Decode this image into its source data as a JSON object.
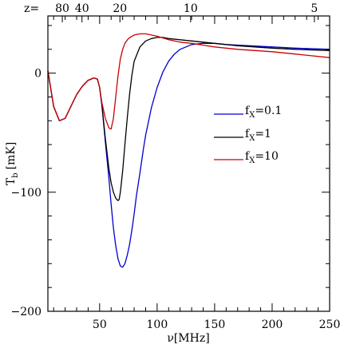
{
  "chart_data": {
    "type": "line",
    "xlabel": "ν[MHz]",
    "ylabel_main": "T",
    "ylabel_sub": "b",
    "ylabel_unit": "[mK]",
    "xlim": [
      5,
      250
    ],
    "ylim": [
      -200,
      48
    ],
    "x_ticks": [
      "50",
      "100",
      "150",
      "200",
      "250"
    ],
    "y_ticks": [
      "0",
      "−100",
      "−200"
    ],
    "top_axis": {
      "label_prefix": "z=",
      "ticks": [
        "80",
        "40",
        "20",
        "10",
        "5"
      ],
      "tick_z_values": [
        80,
        40,
        20,
        10,
        5
      ]
    },
    "series": [
      {
        "name": "f_x=0.1",
        "legend_main": "f",
        "legend_sub": "X",
        "legend_value": "=0.1",
        "color": "#0000cc",
        "x": [
          5,
          10,
          15,
          20,
          25,
          30,
          35,
          40,
          45,
          48,
          50,
          52,
          55,
          58,
          60,
          62,
          64,
          66,
          68,
          70,
          72,
          74,
          76,
          78,
          80,
          82,
          85,
          88,
          90,
          95,
          100,
          105,
          110,
          115,
          120,
          130,
          140,
          150,
          160,
          180,
          200,
          220,
          250
        ],
        "y": [
          2,
          -28,
          -40,
          -38,
          -28,
          -18,
          -11,
          -6,
          -4,
          -5,
          -12,
          -27,
          -58,
          -88,
          -110,
          -130,
          -145,
          -156,
          -162,
          -163,
          -160,
          -153,
          -144,
          -132,
          -118,
          -103,
          -84,
          -64,
          -52,
          -29,
          -12,
          1,
          10,
          16,
          20,
          24,
          25,
          25,
          24,
          23,
          22,
          21,
          20
        ]
      },
      {
        "name": "f_x=1",
        "legend_main": "f",
        "legend_sub": "X",
        "legend_value": "=1",
        "color": "#000000",
        "x": [
          5,
          10,
          15,
          20,
          25,
          30,
          35,
          40,
          45,
          48,
          50,
          52,
          55,
          58,
          60,
          62,
          64,
          66,
          67,
          68,
          70,
          72,
          74,
          76,
          78,
          80,
          85,
          90,
          95,
          100,
          105,
          110,
          120,
          130,
          140,
          150,
          170,
          200,
          220,
          250
        ],
        "y": [
          2,
          -28,
          -40,
          -38,
          -28,
          -18,
          -11,
          -6,
          -4,
          -5,
          -12,
          -27,
          -55,
          -80,
          -92,
          -100,
          -105,
          -107,
          -106,
          -100,
          -82,
          -60,
          -38,
          -18,
          -2,
          10,
          22,
          27,
          29,
          30,
          30,
          29,
          28,
          27,
          26,
          25,
          23,
          21,
          20,
          19
        ]
      },
      {
        "name": "f_x=10",
        "legend_main": "f",
        "legend_sub": "X",
        "legend_value": "=10",
        "color": "#cc0000",
        "x": [
          5,
          10,
          15,
          20,
          25,
          30,
          35,
          40,
          45,
          48,
          50,
          52,
          55,
          58,
          60,
          62,
          64,
          66,
          68,
          70,
          72,
          75,
          78,
          80,
          85,
          90,
          95,
          100,
          110,
          120,
          130,
          150,
          170,
          200,
          220,
          250
        ],
        "y": [
          2,
          -28,
          -40,
          -38,
          -28,
          -18,
          -11,
          -6,
          -4,
          -5,
          -12,
          -25,
          -38,
          -46,
          -47,
          -38,
          -20,
          -2,
          12,
          20,
          25,
          29,
          31,
          32,
          33,
          33,
          32,
          31,
          28,
          26,
          25,
          22,
          20,
          18,
          16,
          13
        ]
      }
    ]
  }
}
